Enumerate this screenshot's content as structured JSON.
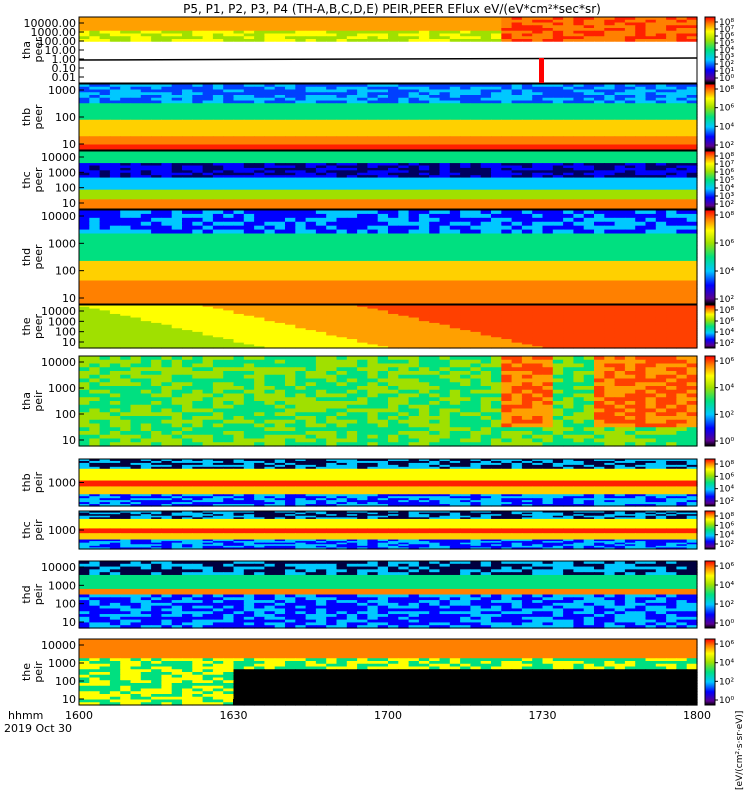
{
  "title": "P5, P1, P2, P3, P4 (TH-A,B,C,D,E) PEIR,PEER EFlux eV/(eV*cm²*sec*sr)",
  "time_axis": {
    "label_line1": "hhmm",
    "label_line2": "2019 Oct 30",
    "ticks": [
      "1600",
      "1630",
      "1700",
      "1730",
      "1800"
    ]
  },
  "colorbar_unit_label": "[eV/(cm²·s·sr·eV)]",
  "colors": {
    "frame": "#000000",
    "background": "#ffffff"
  },
  "chart_data": [
    {
      "type": "heatmap",
      "panel": "tha peer",
      "ylabel_line1": "tha",
      "ylabel_line2": "peer",
      "yticks": [
        "10000.00",
        "1000.00",
        "100.00",
        "10.00",
        "1.00",
        "0.10",
        "0.01"
      ],
      "colorbar_ticks": [
        "10⁸",
        "10⁷",
        "10⁶",
        "10⁵",
        "10⁴",
        "10³",
        "10²",
        "10¹",
        "10⁰"
      ]
    },
    {
      "type": "heatmap",
      "panel": "thb peer",
      "ylabel_line1": "thb",
      "ylabel_line2": "peer",
      "yticks": [
        "1000",
        "100",
        "10"
      ],
      "colorbar_ticks": [
        "10⁸",
        "10⁶",
        "10⁴",
        "10²"
      ]
    },
    {
      "type": "heatmap",
      "panel": "thc peer",
      "ylabel_line1": "thc",
      "ylabel_line2": "peer",
      "yticks": [
        "10000",
        "1000",
        "100",
        "10"
      ],
      "colorbar_ticks": [
        "10⁸",
        "10⁷",
        "10⁶",
        "10⁵",
        "10⁴",
        "10³",
        "10²"
      ]
    },
    {
      "type": "heatmap",
      "panel": "thd peer",
      "ylabel_line1": "thd",
      "ylabel_line2": "peer",
      "yticks": [
        "10000",
        "1000",
        "100",
        "10"
      ],
      "colorbar_ticks": [
        "10⁸",
        "10⁶",
        "10⁴",
        "10²"
      ]
    },
    {
      "type": "heatmap",
      "panel": "the peer",
      "ylabel_line1": "the",
      "ylabel_line2": "peer",
      "yticks": [
        "10000",
        "1000",
        "100",
        "10"
      ],
      "colorbar_ticks": [
        "10⁸",
        "10⁶",
        "10⁴",
        "10²"
      ]
    },
    {
      "type": "heatmap",
      "panel": "tha peir",
      "ylabel_line1": "tha",
      "ylabel_line2": "peir",
      "yticks": [
        "10000",
        "1000",
        "100",
        "10"
      ],
      "colorbar_ticks": [
        "10⁶",
        "10⁴",
        "10²",
        "10⁰"
      ]
    },
    {
      "type": "heatmap",
      "panel": "thb peir",
      "ylabel_line1": "thb",
      "ylabel_line2": "peir",
      "yticks": [
        "1000"
      ],
      "colorbar_ticks": [
        "10⁸",
        "10⁶",
        "10⁴",
        "10²"
      ]
    },
    {
      "type": "heatmap",
      "panel": "thc peir",
      "ylabel_line1": "thc",
      "ylabel_line2": "peir",
      "yticks": [
        "1000"
      ],
      "colorbar_ticks": [
        "10⁸",
        "10⁶",
        "10⁴",
        "10²"
      ]
    },
    {
      "type": "heatmap",
      "panel": "thd peir",
      "ylabel_line1": "thd",
      "ylabel_line2": "peir",
      "yticks": [
        "10000",
        "1000",
        "100",
        "10"
      ],
      "colorbar_ticks": [
        "10⁶",
        "10⁴",
        "10²",
        "10⁰"
      ]
    },
    {
      "type": "heatmap",
      "panel": "the peir",
      "ylabel_line1": "the",
      "ylabel_line2": "peir",
      "yticks": [
        "10000",
        "1000",
        "100",
        "10"
      ],
      "colorbar_ticks": [
        "10⁶",
        "10⁴",
        "10²",
        "10⁰"
      ]
    }
  ]
}
